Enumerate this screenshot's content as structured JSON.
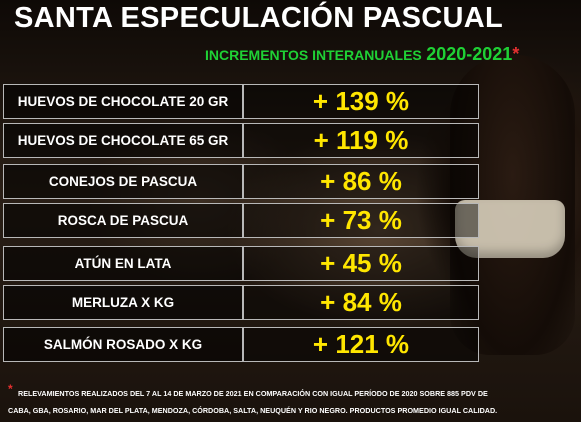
{
  "title": "SANTA ESPECULACIÓN PASCUAL",
  "subtitle": {
    "label": "INCREMENTOS INTERANUALES",
    "years": "2020-2021",
    "asterisk": "*"
  },
  "rows": [
    {
      "product": "HUEVOS DE CHOCOLATE 20 GR",
      "increase": "+ 139 %"
    },
    {
      "product": "HUEVOS DE CHOCOLATE 65 GR",
      "increase": "+ 119 %"
    },
    {
      "product": "CONEJOS DE PASCUA",
      "increase": "+ 86 %"
    },
    {
      "product": "ROSCA DE PASCUA",
      "increase": "+ 73 %"
    },
    {
      "product": "ATÚN EN LATA",
      "increase": "+ 45 %"
    },
    {
      "product": "MERLUZA X KG",
      "increase": "+ 84 %"
    },
    {
      "product": "SALMÓN ROSADO X KG",
      "increase": "+ 121 %"
    }
  ],
  "footnote": {
    "asterisk": "*",
    "line1": "RELEVAMIENTOS REALIZADOS DEL 7 AL 14 DE MARZO DE 2021 EN COMPARACIÓN CON IGUAL PERÍODO DE 2020 SOBRE 885 PDV DE",
    "line2": "CABA, GBA, ROSARIO, MAR DEL PLATA, MENDOZA, CÓRDOBA, SALTA, NEUQUÉN Y RIO NEGRO. PRODUCTOS PROMEDIO IGUAL CALIDAD."
  },
  "colors": {
    "title": "#ffffff",
    "subtitle": "#1fd135",
    "values": "#ffe600",
    "asterisk": "#e53030"
  }
}
